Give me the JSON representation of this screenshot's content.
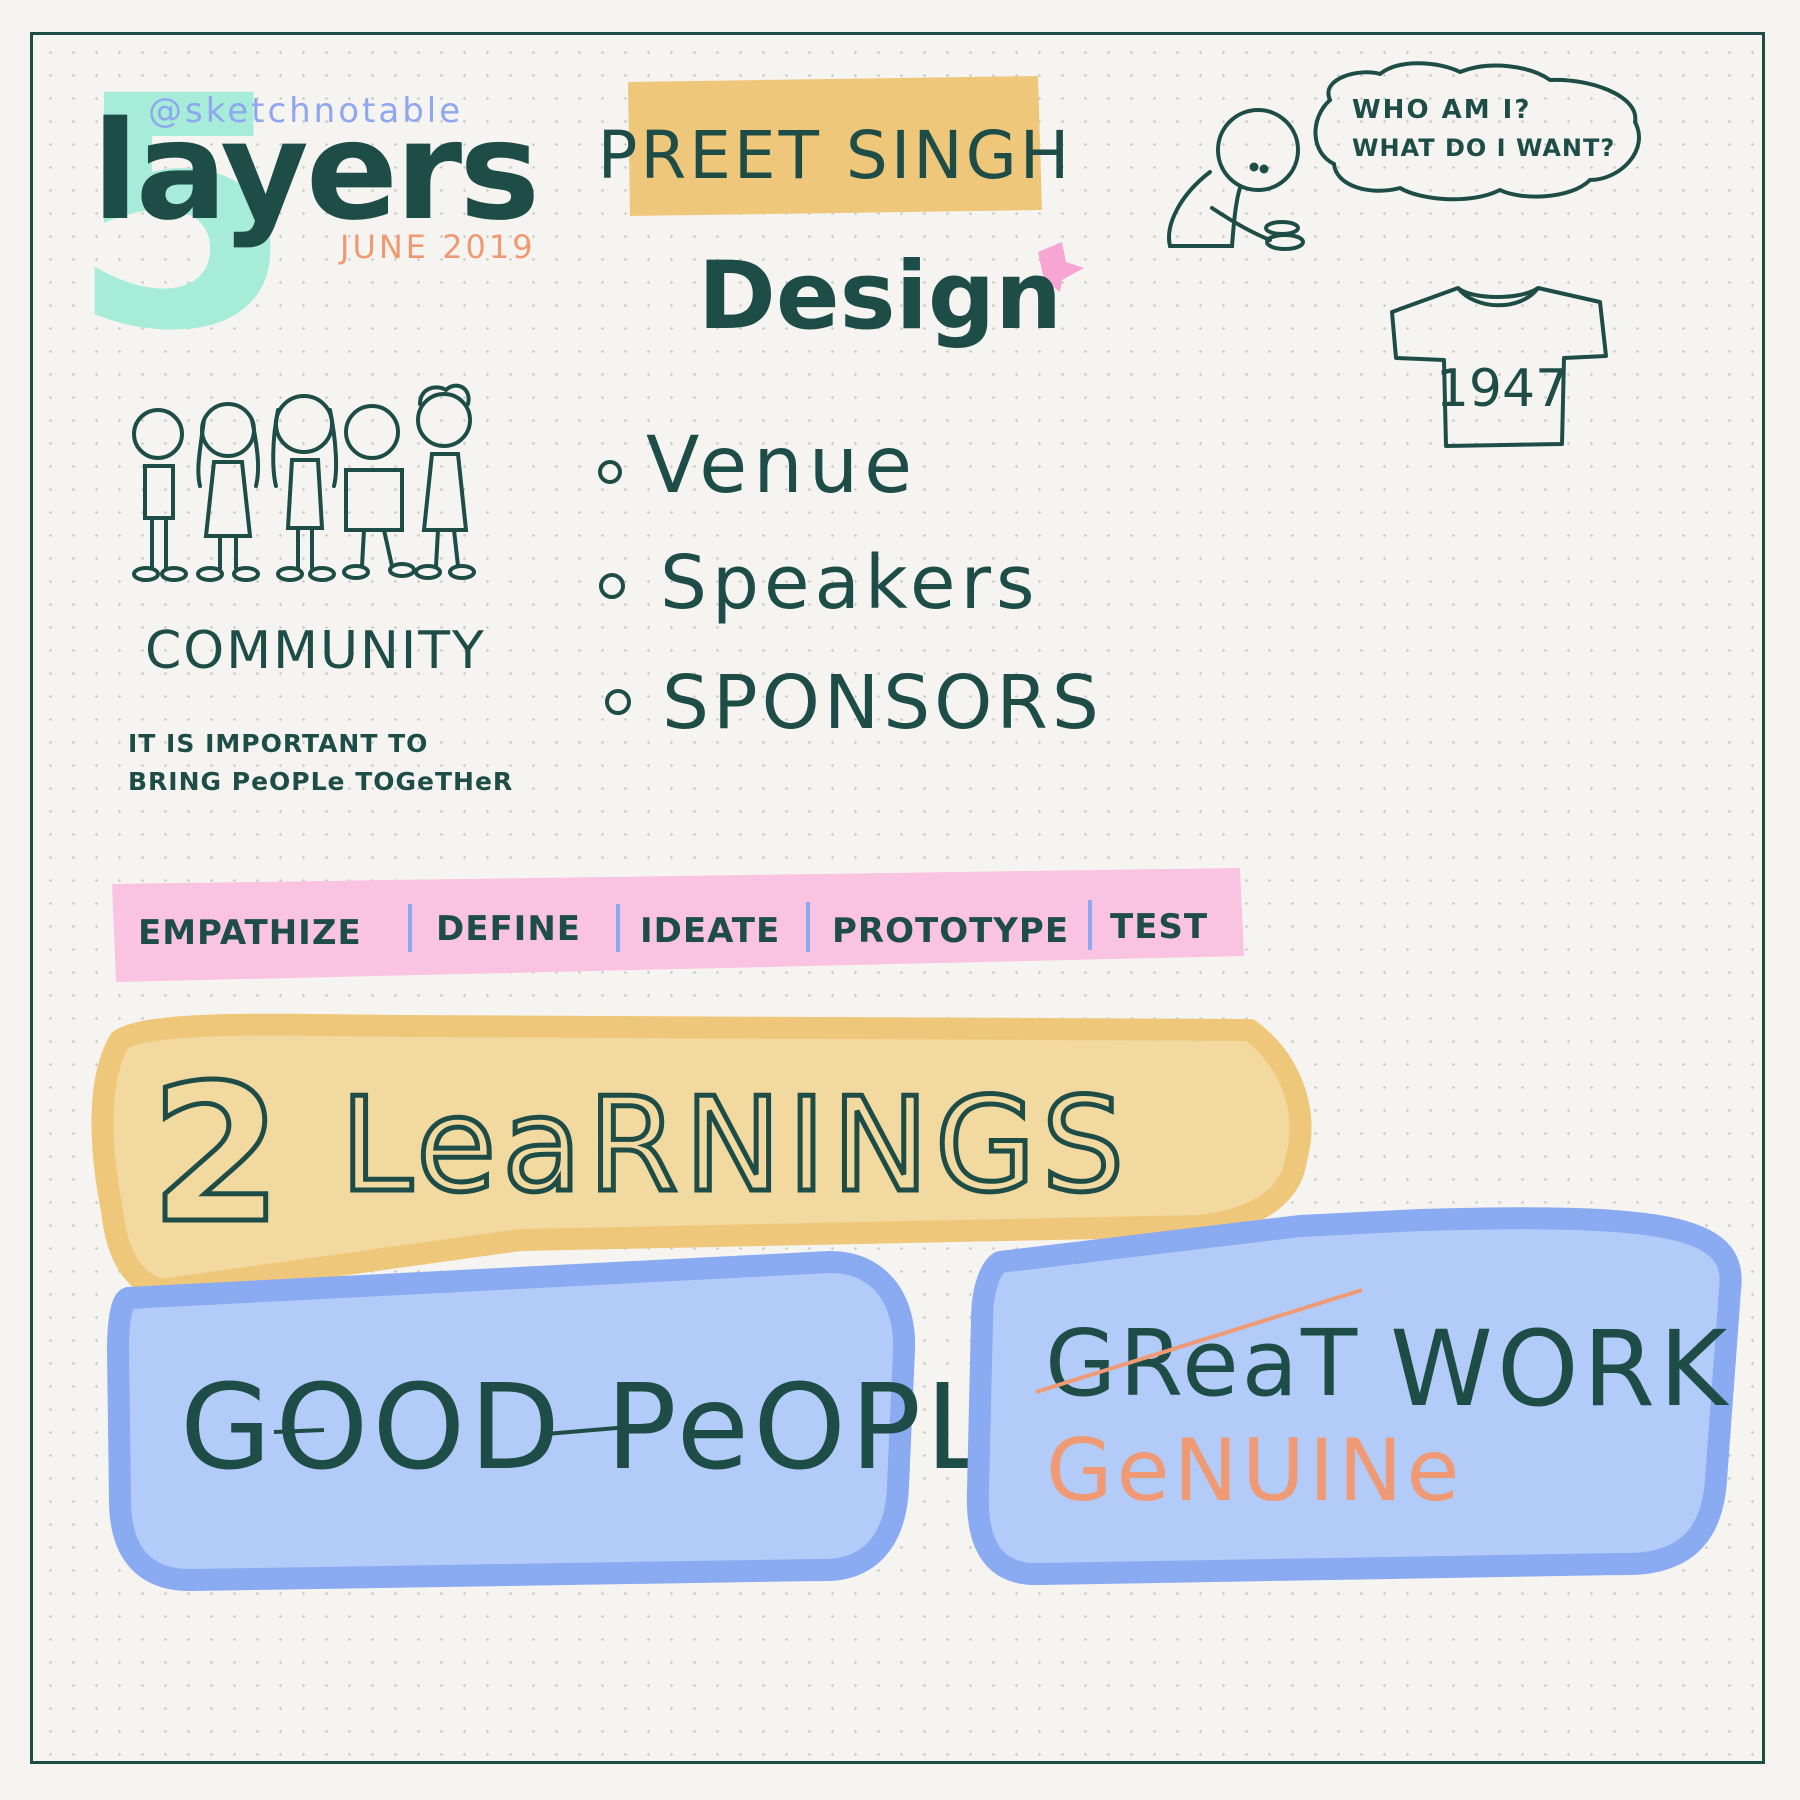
{
  "logo": {
    "handle": "@sketchnotable",
    "word": "layers",
    "number": "5",
    "date": "JUNE 2019"
  },
  "speaker": {
    "name": "PREET SINGH"
  },
  "topic": {
    "title": "Design"
  },
  "thought_bubble": {
    "line1": "WHO AM I?",
    "line2": "WHAT DO I WANT?"
  },
  "tshirt": {
    "text": "1947"
  },
  "community": {
    "label": "COMMUNITY",
    "note_line1": "IT IS IMPORTANT TO",
    "note_line2": "BRING PeOPLe TOGeTHeR"
  },
  "bullets": [
    "Venue",
    "Speakers",
    "SPONSORS"
  ],
  "process": [
    "EMPATHIZE",
    "DEFINE",
    "IDEATE",
    "PROTOTYPE",
    "TEST"
  ],
  "learnings": {
    "title": "2 LeaRNINGS",
    "item1": "GOOD PeOPLe",
    "item2_struck": "GReaT",
    "item2_replacement": "GeNUINe",
    "item2_word": "WORK"
  },
  "colors": {
    "ink": "#1e4d48",
    "mint": "#a6ecd8",
    "periwinkle": "#8fa7ee",
    "coral": "#ef9a74",
    "gold": "#efc77a",
    "pink": "#fbc3e2",
    "blue_fill": "#b2cbf8",
    "blue_edge": "#8aaaf2"
  }
}
